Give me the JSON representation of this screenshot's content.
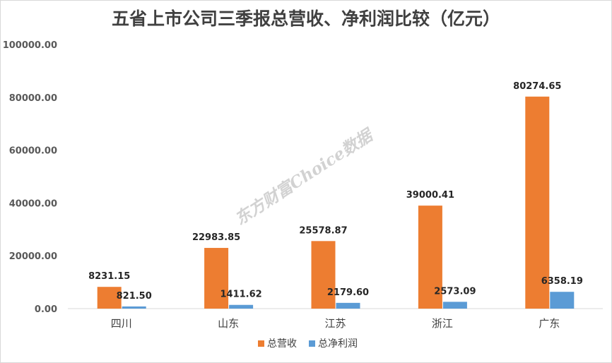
{
  "chart_data": {
    "type": "bar",
    "title": "五省上市公司三季报总营收、净利润比较（亿元）",
    "categories": [
      "四川",
      "山东",
      "江苏",
      "浙江",
      "广东"
    ],
    "series": [
      {
        "name": "总营收",
        "color": "#ED7D31",
        "values": [
          8231.15,
          22983.85,
          25578.87,
          39000.41,
          80274.65
        ]
      },
      {
        "name": "总净利润",
        "color": "#5B9BD5",
        "values": [
          821.5,
          1411.62,
          2179.6,
          2573.09,
          6358.19
        ]
      }
    ],
    "data_labels": {
      "总营收": [
        "8231.15",
        "22983.85",
        "25578.87",
        "39000.41",
        "80274.65"
      ],
      "总净利润": [
        "821.50",
        "1411.62",
        "2179.60",
        "2573.09",
        "6358.19"
      ]
    },
    "ylim": [
      0,
      100000
    ],
    "yticks": [
      0,
      20000,
      40000,
      60000,
      80000,
      100000
    ],
    "ytick_labels": [
      "0.00",
      "20000.00",
      "40000.00",
      "60000.00",
      "80000.00",
      "100000.00"
    ],
    "grid": false,
    "legend_position": "bottom",
    "xlabel": "",
    "ylabel": ""
  },
  "watermark": "东方财富Choice数据"
}
